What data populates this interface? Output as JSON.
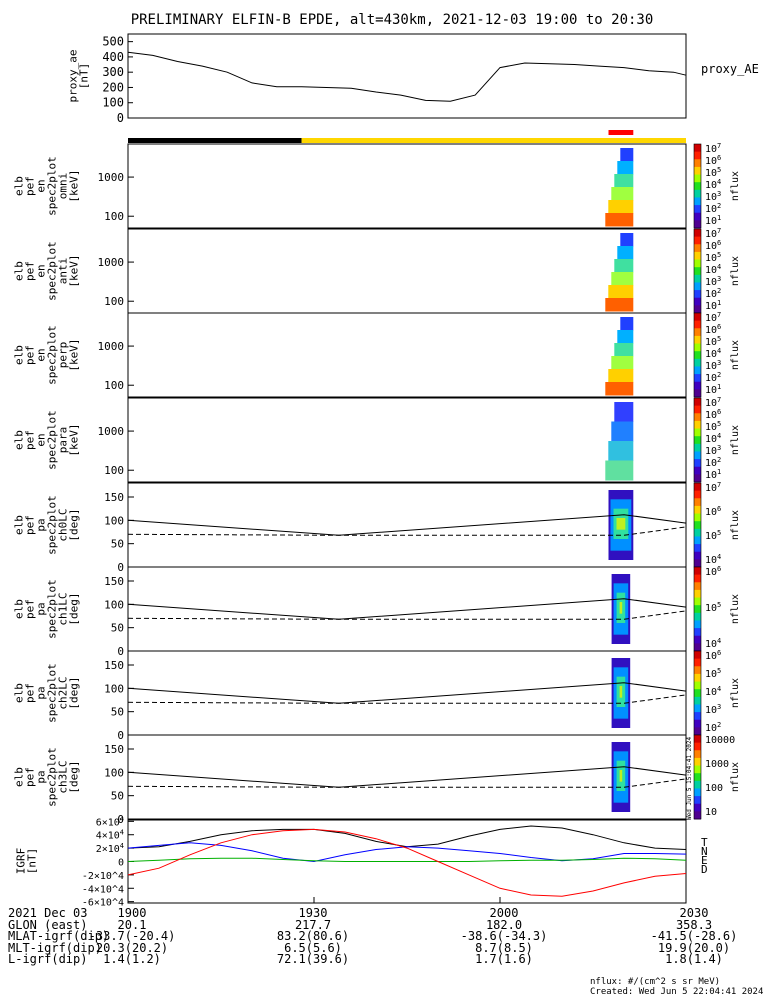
{
  "title": "PRELIMINARY ELFIN-B EPDE, alt=430km, 2021-12-03 19:00 to 20:30",
  "colors": {
    "bar_night": "#000000",
    "bar_sun": "#ffd700",
    "bar_sci": "#ff0000",
    "line_t": "#000000",
    "line_n": "#0000ff",
    "line_e": "#00b000",
    "line_d": "#ff0000"
  },
  "chart_data": [
    {
      "type": "line",
      "name": "proxy_AE",
      "ylabel": "proxy_ae [nT]",
      "legend": "proxy_AE",
      "ylim": [
        0,
        550
      ],
      "yticks": [
        "500",
        "400",
        "300",
        "200",
        "100",
        "0"
      ],
      "x_minutes": [
        0,
        4,
        8,
        12,
        16,
        20,
        24,
        28,
        32,
        36,
        40,
        44,
        48,
        52,
        56,
        60,
        64,
        68,
        72,
        76,
        80,
        84,
        88,
        90
      ],
      "values": [
        430,
        410,
        370,
        340,
        300,
        230,
        205,
        205,
        200,
        195,
        170,
        150,
        115,
        110,
        150,
        330,
        360,
        355,
        350,
        340,
        330,
        310,
        300,
        280
      ]
    },
    {
      "type": "heatmap",
      "name": "elb_pef_en_spec2plot_omni",
      "ylabel": "elb pef en spec2plot omni [keV]",
      "yscale": "log",
      "ylim": [
        50,
        7000
      ],
      "yticks": [
        "1000",
        "100"
      ],
      "zlabel": "nflux",
      "zticks": [
        "10^7",
        "10^6",
        "10^5",
        "10^4",
        "10^3",
        "10^2",
        "10^1"
      ],
      "active_minutes": [
        76.5,
        81.5
      ]
    },
    {
      "type": "heatmap",
      "name": "elb_pef_en_spec2plot_anti",
      "ylabel": "elb pef en spec2plot anti [keV]",
      "yscale": "log",
      "ylim": [
        50,
        7000
      ],
      "yticks": [
        "1000",
        "100"
      ],
      "zlabel": "nflux",
      "zticks": [
        "10^7",
        "10^6",
        "10^5",
        "10^4",
        "10^3",
        "10^2",
        "10^1"
      ],
      "active_minutes": [
        76.5,
        81.5
      ]
    },
    {
      "type": "heatmap",
      "name": "elb_pef_en_spec2plot_perp",
      "ylabel": "elb pef en spec2plot perp [keV]",
      "yscale": "log",
      "ylim": [
        50,
        7000
      ],
      "yticks": [
        "1000",
        "100"
      ],
      "zlabel": "nflux",
      "zticks": [
        "10^7",
        "10^6",
        "10^5",
        "10^4",
        "10^3",
        "10^2",
        "10^1"
      ],
      "active_minutes": [
        76.5,
        81.5
      ]
    },
    {
      "type": "heatmap",
      "name": "elb_pef_en_spec2plot_para",
      "ylabel": "elb pef en spec2plot para [keV]",
      "yscale": "log",
      "ylim": [
        50,
        7000
      ],
      "yticks": [
        "1000",
        "100"
      ],
      "zlabel": "nflux",
      "zticks": [
        "10^7",
        "10^6",
        "10^5",
        "10^4",
        "10^3",
        "10^2",
        "10^1"
      ],
      "active_minutes": [
        76.5,
        81.5
      ]
    },
    {
      "type": "heatmap",
      "name": "elb_pef_pa_spec2plot_ch0LC",
      "ylabel": "elb pef pa spec2plot ch0LC [deg]",
      "ylim": [
        0,
        180
      ],
      "yticks": [
        "150",
        "100",
        "50",
        "0"
      ],
      "zlabel": "nflux",
      "zticks": [
        "10^7",
        "10^6",
        "10^5",
        "10^4"
      ],
      "lc_solid": [
        [
          0,
          100
        ],
        [
          34,
          68
        ],
        [
          80,
          112
        ],
        [
          90,
          94
        ]
      ],
      "lc_dashed": [
        [
          0,
          70
        ],
        [
          34,
          68
        ],
        [
          80,
          68
        ],
        [
          90,
          86
        ]
      ],
      "active_minutes": [
        77.5,
        81.5
      ]
    },
    {
      "type": "heatmap",
      "name": "elb_pef_pa_spec2plot_ch1LC",
      "ylabel": "elb pef pa spec2plot ch1LC [deg]",
      "ylim": [
        0,
        180
      ],
      "yticks": [
        "150",
        "100",
        "50",
        "0"
      ],
      "zlabel": "nflux",
      "zticks": [
        "10^6",
        "10^5",
        "10^4"
      ],
      "lc_solid": [
        [
          0,
          100
        ],
        [
          34,
          68
        ],
        [
          80,
          112
        ],
        [
          90,
          94
        ]
      ],
      "lc_dashed": [
        [
          0,
          70
        ],
        [
          34,
          68
        ],
        [
          80,
          68
        ],
        [
          90,
          86
        ]
      ],
      "active_minutes": [
        78,
        81
      ]
    },
    {
      "type": "heatmap",
      "name": "elb_pef_pa_spec2plot_ch2LC",
      "ylabel": "elb pef pa spec2plot ch2LC [deg]",
      "ylim": [
        0,
        180
      ],
      "yticks": [
        "150",
        "100",
        "50",
        "0"
      ],
      "zlabel": "nflux",
      "zticks": [
        "10^6",
        "10^5",
        "10^4",
        "10^3",
        "10^2"
      ],
      "lc_solid": [
        [
          0,
          100
        ],
        [
          34,
          68
        ],
        [
          80,
          112
        ],
        [
          90,
          94
        ]
      ],
      "lc_dashed": [
        [
          0,
          70
        ],
        [
          34,
          68
        ],
        [
          80,
          68
        ],
        [
          90,
          86
        ]
      ],
      "active_minutes": [
        78,
        81
      ]
    },
    {
      "type": "heatmap",
      "name": "elb_pef_pa_spec2plot_ch3LC",
      "ylabel": "elb pef pa spec2plot ch3LC [deg]",
      "ylim": [
        0,
        180
      ],
      "yticks": [
        "150",
        "100",
        "50",
        "0"
      ],
      "zlabel": "nflux",
      "zticks": [
        "10000",
        "1000",
        "100",
        "10"
      ],
      "lc_solid": [
        [
          0,
          100
        ],
        [
          34,
          68
        ],
        [
          80,
          112
        ],
        [
          90,
          94
        ]
      ],
      "lc_dashed": [
        [
          0,
          70
        ],
        [
          34,
          68
        ],
        [
          80,
          68
        ],
        [
          90,
          86
        ]
      ],
      "active_minutes": [
        78,
        81
      ]
    },
    {
      "type": "line",
      "name": "IGRF",
      "ylabel": "IGRF [nT]",
      "ylim": [
        -62000,
        62000
      ],
      "yticks": [
        "6×10^4",
        "4×10^4",
        "2×10^4",
        "0",
        "-2×10^4",
        "-4×10^4",
        "-6×10^4"
      ],
      "x_minutes": [
        0,
        5,
        10,
        15,
        20,
        25,
        30,
        35,
        40,
        45,
        50,
        55,
        60,
        65,
        70,
        75,
        80,
        85,
        90
      ],
      "series": [
        {
          "name": "T",
          "values": [
            20000,
            22000,
            30000,
            40000,
            46000,
            48000,
            48000,
            42000,
            30000,
            22000,
            26000,
            38000,
            48000,
            53000,
            50000,
            40000,
            28000,
            20000,
            18000
          ]
        },
        {
          "name": "N",
          "values": [
            20000,
            24000,
            28000,
            24000,
            16000,
            5000,
            0,
            10000,
            18000,
            22000,
            20000,
            16000,
            12000,
            6000,
            1000,
            4000,
            12000,
            12000,
            11000
          ]
        },
        {
          "name": "E",
          "values": [
            0,
            2000,
            4000,
            5000,
            5000,
            3000,
            1000,
            0,
            0,
            0,
            0,
            0,
            1000,
            2000,
            2000,
            3000,
            5000,
            4000,
            2000
          ]
        },
        {
          "name": "D",
          "values": [
            -20000,
            -10000,
            10000,
            28000,
            40000,
            46000,
            48000,
            44000,
            34000,
            20000,
            0,
            -20000,
            -40000,
            -50000,
            -52000,
            -44000,
            -32000,
            -22000,
            -18000
          ]
        }
      ]
    }
  ],
  "xaxis": {
    "tick_minutes": [
      0,
      30,
      60,
      90
    ],
    "tick_labels": [
      "1900",
      "1930",
      "2000",
      "2030"
    ]
  },
  "footer": {
    "date": "2021 Dec 03",
    "rows": [
      {
        "label": "GLON (east)",
        "values": [
          "20.1",
          "217.7",
          "182.0",
          "358.3"
        ]
      },
      {
        "label": "MLAT-igrf(dip)",
        "values": [
          "-33.7(-20.4)",
          "83.2(80.6)",
          "-38.6(-34.3)",
          "-41.5(-28.6)"
        ]
      },
      {
        "label": "MLT-igrf(dip)",
        "values": [
          "20.3(20.2)",
          "6.5(5.6)",
          "8.7(8.5)",
          "19.9(20.0)"
        ]
      },
      {
        "label": "L-igrf(dip)",
        "values": [
          "1.4(1.2)",
          "72.1(39.6)",
          "1.7(1.6)",
          "1.8(1.4)"
        ]
      }
    ]
  },
  "credit": {
    "units": "nflux: #/(cm^2 s sr MeV)",
    "created": "Created: Wed Jun  5 22:04:41 2024"
  },
  "stamp": "Wed Jun  5 15:04:41 2024"
}
